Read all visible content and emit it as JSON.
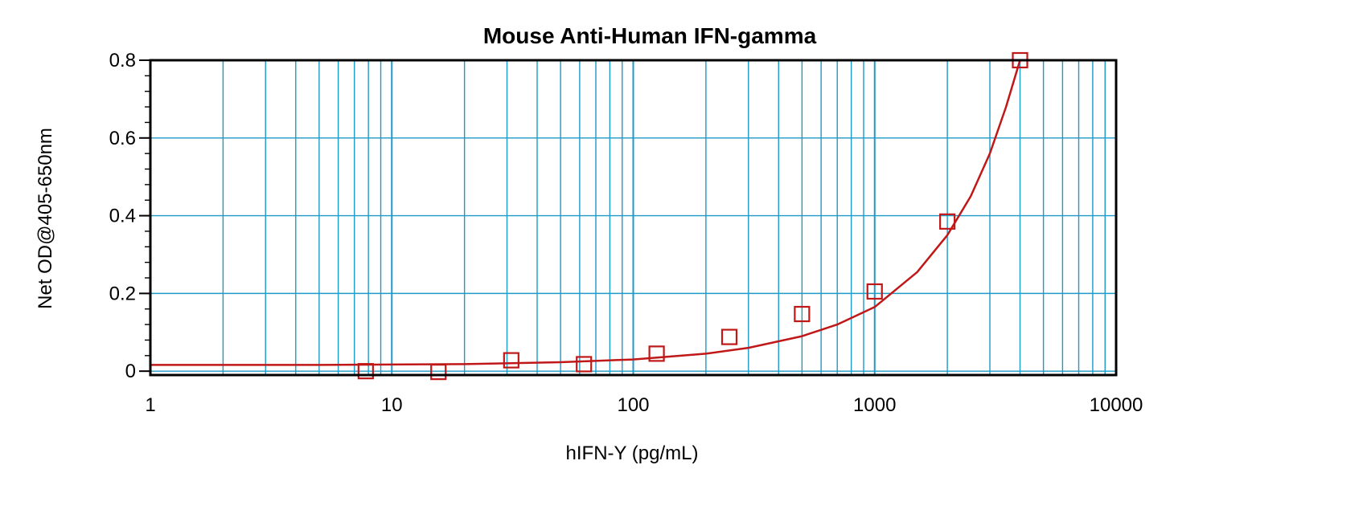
{
  "chart_data": {
    "type": "scatter",
    "title": "Mouse Anti-Human IFN-gamma",
    "xlabel": "hIFN-Y (pg/mL)",
    "ylabel": "Net OD@405-650nm",
    "x_scale": "log",
    "xlim": [
      1,
      10000
    ],
    "ylim": [
      -0.01,
      0.8
    ],
    "x_ticks": [
      1,
      10,
      100,
      1000,
      10000
    ],
    "x_tick_labels": [
      "1",
      "10",
      "100",
      "1000",
      "10000"
    ],
    "y_ticks": [
      0,
      0.2,
      0.4,
      0.6,
      0.8
    ],
    "y_tick_labels": [
      "0",
      "0.2",
      "0.4",
      "0.6",
      "0.8"
    ],
    "grid": true,
    "series": [
      {
        "marker": "open-square",
        "color": "#c01818",
        "x": [
          7.8,
          15.6,
          31.25,
          62.5,
          125,
          250,
          500,
          1000,
          2000,
          4000
        ],
        "y": [
          0.0,
          -0.002,
          0.028,
          0.018,
          0.045,
          0.088,
          0.147,
          0.205,
          0.385,
          0.8
        ]
      }
    ],
    "fit_curve": {
      "color": "#c01818",
      "x": [
        1,
        2,
        5,
        10,
        20,
        50,
        100,
        200,
        300,
        500,
        700,
        1000,
        1500,
        2000,
        2500,
        3000,
        3500,
        4000
      ],
      "y": [
        0.016,
        0.016,
        0.016,
        0.017,
        0.018,
        0.023,
        0.03,
        0.045,
        0.06,
        0.09,
        0.12,
        0.165,
        0.255,
        0.35,
        0.45,
        0.56,
        0.68,
        0.8
      ]
    },
    "colors": {
      "grid": "#1e9ac8",
      "frame": "#000000",
      "data": "#c01818"
    }
  }
}
